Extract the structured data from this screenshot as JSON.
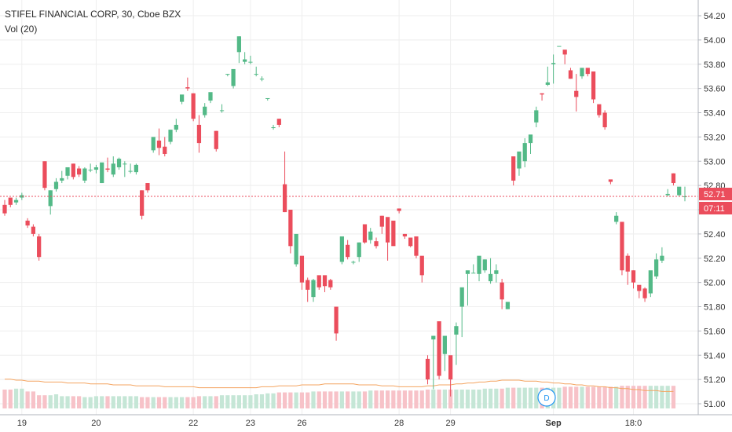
{
  "legend": {
    "symbol_line": "STIFEL FINANCIAL CORP, 30, Cboe BZX",
    "volume_line": "Vol (20)"
  },
  "price_label": "52.71",
  "countdown_label": "07:11",
  "event_marker": "D",
  "colors": {
    "up": "#53b987",
    "down": "#eb4d5c",
    "vol_up": "#c5e6d6",
    "vol_down": "#f7c2c8",
    "vol_ma": "#f4a460",
    "price_line": "#eb4d5c",
    "grid": "#eeeeee"
  },
  "chart_data": {
    "type": "candlestick",
    "title": "STIFEL FINANCIAL CORP, 30, Cboe BZX",
    "ylim": [
      51.0,
      54.2
    ],
    "y_ticks": [
      "54.20",
      "54.00",
      "53.80",
      "53.60",
      "53.40",
      "53.20",
      "53.00",
      "52.80",
      "52.60",
      "52.40",
      "52.20",
      "52.00",
      "51.80",
      "51.60",
      "51.40",
      "51.20",
      "51.00"
    ],
    "x_ticks": [
      {
        "label": "19",
        "bar": 3
      },
      {
        "label": "20",
        "bar": 16
      },
      {
        "label": "22",
        "bar": 33
      },
      {
        "label": "23",
        "bar": 43
      },
      {
        "label": "26",
        "bar": 52
      },
      {
        "label": "28",
        "bar": 69
      },
      {
        "label": "29",
        "bar": 78
      },
      {
        "label": "Sep",
        "bar": 96,
        "bold": true
      },
      {
        "label": "18:0",
        "bar": 110
      }
    ],
    "last_price": 52.71,
    "candles": [
      [
        52.64,
        52.68,
        52.57,
        52.55
      ],
      [
        52.7,
        52.7,
        52.64,
        52.62
      ],
      [
        52.66,
        52.7,
        52.68,
        52.64
      ],
      [
        52.7,
        52.74,
        52.72,
        52.68
      ],
      [
        52.51,
        52.53,
        52.47,
        52.45
      ],
      [
        52.46,
        52.48,
        52.4,
        52.38
      ],
      [
        52.38,
        52.4,
        52.21,
        52.18
      ],
      [
        53.0,
        53.0,
        52.78,
        52.76
      ],
      [
        52.63,
        52.76,
        52.76,
        52.56
      ],
      [
        52.77,
        52.86,
        52.83,
        52.75
      ],
      [
        52.84,
        52.92,
        52.86,
        52.82
      ],
      [
        52.88,
        52.94,
        52.95,
        52.85
      ],
      [
        52.98,
        52.98,
        52.87,
        52.85
      ],
      [
        52.94,
        52.96,
        52.89,
        52.87
      ],
      [
        52.84,
        52.95,
        52.94,
        52.82
      ],
      [
        52.93,
        52.98,
        52.93,
        52.91
      ],
      [
        52.93,
        52.97,
        52.95,
        52.9
      ],
      [
        52.82,
        52.93,
        52.99,
        52.82
      ],
      [
        52.94,
        53.03,
        52.93,
        52.91
      ],
      [
        52.89,
        53.04,
        52.98,
        52.87
      ],
      [
        52.95,
        53.03,
        53.02,
        52.93
      ],
      [
        52.98,
        53.0,
        52.98,
        52.87
      ],
      [
        52.92,
        52.98,
        52.92,
        52.9
      ],
      [
        52.91,
        52.98,
        52.97,
        52.89
      ],
      [
        52.76,
        52.76,
        52.55,
        52.52
      ],
      [
        52.82,
        52.82,
        52.76,
        52.74
      ],
      [
        53.09,
        53.18,
        53.2,
        53.07
      ],
      [
        53.17,
        53.27,
        53.11,
        53.05
      ],
      [
        53.12,
        53.2,
        53.06,
        53.04
      ],
      [
        53.16,
        53.25,
        53.26,
        53.14
      ],
      [
        53.26,
        53.35,
        53.3,
        53.24
      ],
      [
        53.49,
        53.52,
        53.55,
        53.47
      ],
      [
        53.61,
        53.69,
        53.6,
        53.58
      ],
      [
        53.56,
        53.56,
        53.35,
        53.33
      ],
      [
        53.3,
        53.38,
        53.15,
        53.07
      ],
      [
        53.38,
        53.48,
        53.45,
        53.36
      ],
      [
        53.5,
        53.52,
        53.57,
        53.48
      ],
      [
        53.25,
        53.25,
        53.1,
        53.08
      ],
      [
        53.42,
        53.47,
        53.42,
        53.4
      ],
      [
        53.72,
        53.72,
        53.72,
        53.7
      ],
      [
        53.62,
        53.75,
        53.76,
        53.6
      ],
      [
        53.9,
        54.03,
        54.03,
        53.81
      ],
      [
        53.82,
        53.9,
        53.84,
        53.8
      ],
      [
        53.82,
        53.87,
        53.82,
        53.8
      ],
      [
        53.72,
        53.78,
        53.72,
        53.7
      ],
      [
        53.68,
        53.7,
        53.68,
        53.66
      ],
      [
        53.52,
        53.52,
        53.52,
        53.5
      ],
      [
        53.28,
        53.3,
        53.28,
        53.26
      ],
      [
        53.35,
        53.35,
        53.3,
        53.28
      ],
      [
        52.81,
        53.08,
        52.58,
        52.58
      ],
      [
        52.6,
        52.56,
        52.3,
        52.24
      ],
      [
        52.15,
        52.26,
        52.4,
        52.13
      ],
      [
        52.22,
        52.17,
        52.0,
        51.94
      ],
      [
        52.02,
        52.04,
        51.94,
        51.84
      ],
      [
        51.88,
        52.03,
        52.02,
        51.84
      ],
      [
        52.06,
        52.04,
        51.96,
        51.94
      ],
      [
        52.06,
        52.05,
        51.97,
        51.92
      ],
      [
        52.02,
        52.03,
        51.96,
        51.94
      ],
      [
        51.8,
        51.8,
        51.58,
        51.52
      ],
      [
        52.17,
        52.37,
        52.38,
        52.15
      ],
      [
        52.31,
        52.35,
        52.21,
        52.19
      ],
      [
        52.17,
        52.18,
        52.17,
        52.15
      ],
      [
        52.21,
        52.33,
        52.33,
        52.17
      ],
      [
        52.48,
        52.44,
        52.33,
        52.32
      ],
      [
        52.35,
        52.45,
        52.42,
        52.32
      ],
      [
        52.34,
        52.37,
        52.3,
        52.28
      ],
      [
        52.55,
        52.55,
        52.46,
        52.4
      ],
      [
        52.54,
        52.43,
        52.33,
        52.18
      ],
      [
        52.51,
        52.5,
        52.3,
        52.34
      ],
      [
        52.61,
        52.61,
        52.59,
        52.57
      ],
      [
        52.4,
        52.4,
        52.38,
        52.36
      ],
      [
        52.37,
        52.37,
        52.3,
        52.29
      ],
      [
        52.38,
        52.38,
        52.22,
        52.2
      ],
      [
        52.22,
        52.08,
        52.06,
        52.0
      ],
      [
        51.37,
        51.4,
        51.2,
        51.16
      ],
      [
        51.53,
        51.56,
        51.56,
        51.12
      ],
      [
        51.68,
        51.38,
        51.23,
        51.2
      ],
      [
        51.41,
        51.53,
        51.56,
        51.27
      ],
      [
        51.4,
        51.28,
        51.2,
        51.06
      ],
      [
        51.57,
        51.67,
        51.64,
        51.32
      ],
      [
        51.8,
        51.93,
        51.96,
        51.55
      ],
      [
        52.07,
        52.07,
        52.1,
        51.81
      ],
      [
        52.08,
        52.15,
        52.08,
        52.08
      ],
      [
        52.07,
        52.21,
        52.22,
        52.01
      ],
      [
        52.1,
        52.19,
        52.19,
        52.08
      ],
      [
        52.01,
        52.2,
        52.07,
        51.99
      ],
      [
        52.07,
        52.15,
        52.1,
        52.0
      ],
      [
        52.0,
        52.03,
        51.86,
        51.78
      ],
      [
        51.78,
        51.78,
        51.84,
        51.79
      ],
      [
        53.04,
        53.02,
        52.84,
        52.8
      ],
      [
        52.94,
        53.06,
        53.08,
        52.88
      ],
      [
        53.0,
        53.19,
        53.15,
        52.95
      ],
      [
        53.15,
        53.2,
        53.22,
        53.06
      ],
      [
        53.32,
        53.45,
        53.42,
        53.28
      ],
      [
        53.56,
        53.56,
        53.55,
        53.5
      ],
      [
        53.63,
        53.78,
        53.65,
        53.62
      ],
      [
        53.8,
        53.88,
        53.81,
        53.64
      ],
      [
        53.95,
        53.97,
        53.95,
        53.97
      ],
      [
        53.92,
        53.9,
        53.88,
        53.8
      ],
      [
        53.75,
        53.77,
        53.68,
        53.68
      ],
      [
        53.58,
        53.72,
        53.53,
        53.41
      ],
      [
        53.7,
        53.76,
        53.77,
        53.68
      ],
      [
        53.77,
        53.74,
        53.72,
        53.7
      ],
      [
        53.74,
        53.62,
        53.51,
        53.48
      ],
      [
        53.47,
        53.44,
        53.38,
        53.36
      ],
      [
        53.4,
        53.42,
        53.28,
        53.26
      ],
      [
        52.85,
        52.84,
        52.83,
        52.81
      ],
      [
        52.5,
        52.58,
        52.55,
        52.48
      ],
      [
        52.5,
        52.43,
        52.1,
        52.06
      ],
      [
        52.22,
        52.24,
        52.09,
        51.98
      ],
      [
        52.1,
        52.1,
        52.0,
        51.95
      ],
      [
        51.98,
        51.96,
        51.93,
        51.87
      ],
      [
        51.95,
        51.96,
        51.87,
        51.84
      ],
      [
        51.91,
        52.04,
        52.1,
        51.88
      ],
      [
        52.05,
        52.24,
        52.19,
        52.03
      ],
      [
        52.18,
        52.29,
        52.22,
        52.16
      ],
      [
        52.72,
        52.77,
        52.73,
        52.71
      ],
      [
        52.9,
        52.9,
        52.82,
        52.8
      ],
      [
        52.72,
        52.72,
        52.79,
        52.71
      ],
      [
        52.71,
        52.79,
        52.71,
        52.67
      ]
    ],
    "volume": {
      "ylim": [
        0,
        100
      ],
      "values": [
        20,
        20,
        21,
        21,
        18,
        18,
        14,
        14,
        14,
        15,
        13,
        13,
        13,
        13,
        12,
        12,
        13,
        13,
        13,
        13,
        13,
        13,
        13,
        13,
        12,
        12,
        12,
        12,
        12,
        12,
        12,
        12,
        12,
        12,
        13,
        13,
        13,
        13,
        14,
        14,
        14,
        14,
        14,
        14,
        15,
        15,
        16,
        16,
        17,
        17,
        17,
        17,
        17,
        17,
        18,
        18,
        18,
        18,
        18,
        18,
        18,
        18,
        18,
        18,
        19,
        19,
        19,
        19,
        19,
        19,
        19,
        19,
        19,
        19,
        20,
        20,
        20,
        20,
        20,
        20,
        20,
        20,
        20,
        20,
        21,
        21,
        21,
        21,
        22,
        22,
        22,
        22,
        22,
        22,
        22,
        22,
        22,
        22,
        23,
        23,
        23,
        23,
        23,
        23,
        23,
        23,
        23,
        23,
        24,
        24,
        24,
        24,
        24,
        24,
        24,
        24,
        24,
        24
      ],
      "ma": [
        31,
        31,
        30,
        30,
        29,
        29,
        29,
        28,
        28,
        28,
        28,
        27,
        27,
        27,
        27,
        26,
        26,
        26,
        26,
        25,
        25,
        25,
        25,
        24,
        24,
        24,
        24,
        24,
        23,
        23,
        23,
        23,
        23,
        23,
        22,
        22,
        22,
        22,
        22,
        22,
        22,
        22,
        22,
        22,
        22,
        23,
        23,
        23,
        24,
        24,
        24,
        24,
        25,
        25,
        25,
        25,
        26,
        26,
        26,
        26,
        26,
        26,
        25,
        25,
        25,
        25,
        24,
        24,
        24,
        23,
        23,
        23,
        23,
        23,
        24,
        24,
        25,
        25,
        25,
        26,
        26,
        27,
        27,
        28,
        28,
        29,
        29,
        30,
        30,
        30,
        30,
        29,
        29,
        29,
        28,
        28,
        27,
        27,
        26,
        26,
        25,
        25,
        24,
        24,
        23,
        23,
        22,
        22,
        21,
        21,
        20,
        20,
        19,
        19,
        19,
        18,
        18,
        18
      ]
    }
  }
}
